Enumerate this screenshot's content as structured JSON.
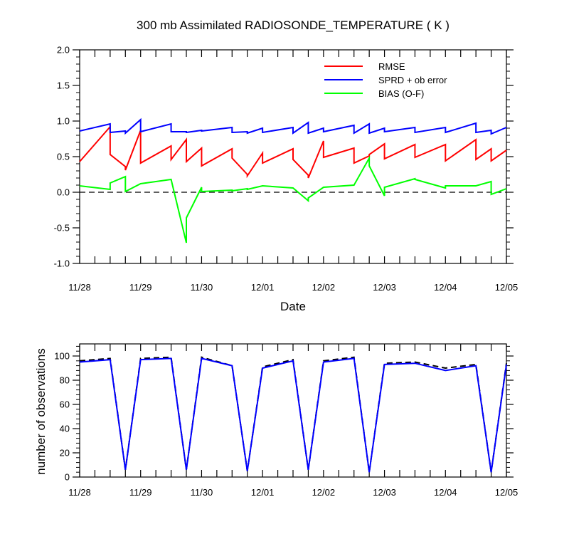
{
  "chart_data": [
    {
      "type": "line",
      "title": "300 mb Assimilated RADIOSONDE_TEMPERATURE ( K )",
      "xlabel": "Date",
      "ylabel": "",
      "x_tick_values": [
        0,
        1,
        2,
        3,
        4,
        5,
        6,
        7
      ],
      "x_tick_labels": [
        "11/28",
        "11/29",
        "11/30",
        "12/01",
        "12/02",
        "12/03",
        "12/04",
        "12/05"
      ],
      "xlim": [
        0,
        7
      ],
      "ylim": [
        -1.0,
        2.0
      ],
      "y_tick_values": [
        -1.0,
        -0.5,
        0.0,
        0.5,
        1.0,
        1.5,
        2.0
      ],
      "y_tick_labels": [
        "-1.0",
        "-0.5",
        "0.0",
        "0.5",
        "1.0",
        "1.5",
        "2.0"
      ],
      "zero_line": "dashed",
      "legend_position": "top-right",
      "series": [
        {
          "name": "RMSE",
          "color": "#ff0000",
          "points": [
            [
              0,
              0.43
            ],
            [
              0.5,
              0.92
            ],
            [
              0.5,
              0.53
            ],
            [
              0.75,
              0.36
            ],
            [
              0.75,
              0.31
            ],
            [
              1,
              0.87
            ],
            [
              1,
              0.41
            ],
            [
              1.5,
              0.65
            ],
            [
              1.5,
              0.46
            ],
            [
              1.75,
              0.74
            ],
            [
              1.75,
              0.43
            ],
            [
              2,
              0.62
            ],
            [
              2,
              0.37
            ],
            [
              2.5,
              0.61
            ],
            [
              2.5,
              0.48
            ],
            [
              2.75,
              0.25
            ],
            [
              2.75,
              0.23
            ],
            [
              3,
              0.55
            ],
            [
              3,
              0.41
            ],
            [
              3.5,
              0.61
            ],
            [
              3.5,
              0.46
            ],
            [
              3.75,
              0.24
            ],
            [
              3.75,
              0.2
            ],
            [
              4,
              0.72
            ],
            [
              4,
              0.49
            ],
            [
              4.5,
              0.62
            ],
            [
              4.5,
              0.41
            ],
            [
              4.75,
              0.51
            ],
            [
              4.75,
              0.53
            ],
            [
              5,
              0.68
            ],
            [
              5,
              0.47
            ],
            [
              5.5,
              0.67
            ],
            [
              5.5,
              0.49
            ],
            [
              6,
              0.67
            ],
            [
              6,
              0.44
            ],
            [
              6.5,
              0.74
            ],
            [
              6.5,
              0.46
            ],
            [
              6.75,
              0.61
            ],
            [
              6.75,
              0.44
            ],
            [
              7,
              0.59
            ]
          ]
        },
        {
          "name": "SPRD + ob error",
          "color": "#0000ff",
          "points": [
            [
              0,
              0.86
            ],
            [
              0.5,
              0.96
            ],
            [
              0.5,
              0.84
            ],
            [
              0.75,
              0.86
            ],
            [
              0.75,
              0.83
            ],
            [
              1,
              1.02
            ],
            [
              1,
              0.85
            ],
            [
              1.5,
              0.96
            ],
            [
              1.5,
              0.85
            ],
            [
              1.75,
              0.85
            ],
            [
              1.75,
              0.84
            ],
            [
              2,
              0.87
            ],
            [
              2,
              0.86
            ],
            [
              2.5,
              0.91
            ],
            [
              2.5,
              0.84
            ],
            [
              2.75,
              0.85
            ],
            [
              2.75,
              0.83
            ],
            [
              3,
              0.9
            ],
            [
              3,
              0.84
            ],
            [
              3.5,
              0.91
            ],
            [
              3.5,
              0.83
            ],
            [
              3.75,
              0.98
            ],
            [
              3.75,
              0.83
            ],
            [
              4,
              0.9
            ],
            [
              4,
              0.85
            ],
            [
              4.5,
              0.94
            ],
            [
              4.5,
              0.83
            ],
            [
              4.75,
              0.96
            ],
            [
              4.75,
              0.83
            ],
            [
              5,
              0.9
            ],
            [
              5,
              0.85
            ],
            [
              5.5,
              0.91
            ],
            [
              5.5,
              0.84
            ],
            [
              6,
              0.91
            ],
            [
              6,
              0.84
            ],
            [
              6.5,
              0.97
            ],
            [
              6.5,
              0.84
            ],
            [
              6.75,
              0.87
            ],
            [
              6.75,
              0.82
            ],
            [
              7,
              0.91
            ]
          ]
        },
        {
          "name": "BIAS (O-F)",
          "color": "#00ff00",
          "points": [
            [
              0,
              0.09
            ],
            [
              0.5,
              0.04
            ],
            [
              0.5,
              0.13
            ],
            [
              0.75,
              0.22
            ],
            [
              0.75,
              0.01
            ],
            [
              1,
              0.12
            ],
            [
              1.5,
              0.18
            ],
            [
              1.75,
              -0.71
            ],
            [
              1.75,
              -0.36
            ],
            [
              2,
              0.07
            ],
            [
              2,
              0.01
            ],
            [
              2.5,
              0.03
            ],
            [
              2.5,
              0.02
            ],
            [
              2.75,
              0.05
            ],
            [
              2.75,
              0.04
            ],
            [
              3,
              0.09
            ],
            [
              3.5,
              0.06
            ],
            [
              3.75,
              -0.12
            ],
            [
              3.75,
              -0.08
            ],
            [
              4,
              0.07
            ],
            [
              4.5,
              0.1
            ],
            [
              4.75,
              0.48
            ],
            [
              4.75,
              0.37
            ],
            [
              5,
              -0.05
            ],
            [
              5,
              0.07
            ],
            [
              5.5,
              0.19
            ],
            [
              5.5,
              0.18
            ],
            [
              6,
              0.06
            ],
            [
              6,
              0.09
            ],
            [
              6.5,
              0.09
            ],
            [
              6.75,
              0.15
            ],
            [
              6.75,
              -0.03
            ],
            [
              7,
              0.05
            ]
          ]
        }
      ]
    },
    {
      "type": "line",
      "title": "",
      "xlabel": "",
      "ylabel": "number of observations",
      "x_tick_values": [
        0,
        1,
        2,
        3,
        4,
        5,
        6,
        7
      ],
      "x_tick_labels": [
        "11/28",
        "11/29",
        "11/30",
        "12/01",
        "12/02",
        "12/03",
        "12/04",
        "12/05"
      ],
      "xlim": [
        0,
        7
      ],
      "ylim": [
        0,
        110
      ],
      "y_tick_values": [
        0,
        20,
        40,
        60,
        80,
        100
      ],
      "y_tick_labels": [
        "0",
        "20",
        "40",
        "60",
        "80",
        "100"
      ],
      "series": [
        {
          "name": "",
          "color": "#000000",
          "style": "dashed",
          "points": [
            [
              0,
              96
            ],
            [
              0.5,
              98
            ],
            [
              0.75,
              6
            ],
            [
              1,
              98
            ],
            [
              1.5,
              99
            ],
            [
              1.75,
              6
            ],
            [
              2,
              99
            ],
            [
              2.5,
              92
            ],
            [
              2.75,
              5
            ],
            [
              3,
              91
            ],
            [
              3.5,
              97
            ],
            [
              3.75,
              6
            ],
            [
              4,
              96
            ],
            [
              4.5,
              99
            ],
            [
              4.75,
              4
            ],
            [
              5,
              94
            ],
            [
              5.5,
              95
            ],
            [
              6,
              90
            ],
            [
              6.5,
              93
            ],
            [
              6.75,
              4
            ],
            [
              7,
              94
            ]
          ]
        },
        {
          "name": "",
          "color": "#0000ff",
          "style": "solid",
          "points": [
            [
              0,
              95
            ],
            [
              0.5,
              97
            ],
            [
              0.75,
              6
            ],
            [
              1,
              97
            ],
            [
              1.5,
              98
            ],
            [
              1.75,
              6
            ],
            [
              2,
              98
            ],
            [
              2.5,
              92
            ],
            [
              2.75,
              5
            ],
            [
              3,
              90
            ],
            [
              3.5,
              96
            ],
            [
              3.75,
              6
            ],
            [
              4,
              95
            ],
            [
              4.5,
              98
            ],
            [
              4.75,
              4
            ],
            [
              5,
              93
            ],
            [
              5.5,
              94
            ],
            [
              6,
              88
            ],
            [
              6.5,
              92
            ],
            [
              6.75,
              4
            ],
            [
              7,
              93
            ]
          ]
        }
      ]
    }
  ]
}
